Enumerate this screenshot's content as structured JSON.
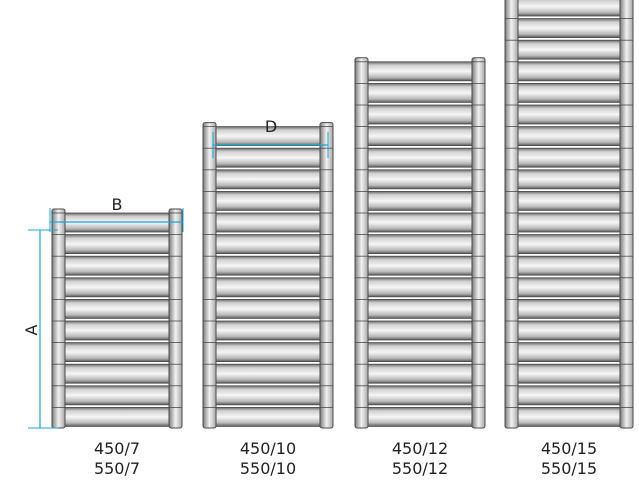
{
  "dimension_labels": {
    "height": "A",
    "width": "B",
    "depth": "D"
  },
  "models": [
    {
      "line1": "450/7",
      "line2": "550/7",
      "bars": 10
    },
    {
      "line1": "450/10",
      "line2": "550/10",
      "bars": 14
    },
    {
      "line1": "450/12",
      "line2": "550/12",
      "bars": 17
    },
    {
      "line1": "450/15",
      "line2": "550/15",
      "bars": 21
    }
  ],
  "colors": {
    "dimension_line": "#1aa7d8",
    "post_gradient": [
      "#7c7c7c",
      "#f2f2f2",
      "#a8a8a8"
    ],
    "bar_gradient": [
      "#6a6a6a",
      "#e4e4e4",
      "#f8f8f8",
      "#9a9a9a",
      "#5a5a5a"
    ],
    "outline": "#4a4a4a"
  }
}
